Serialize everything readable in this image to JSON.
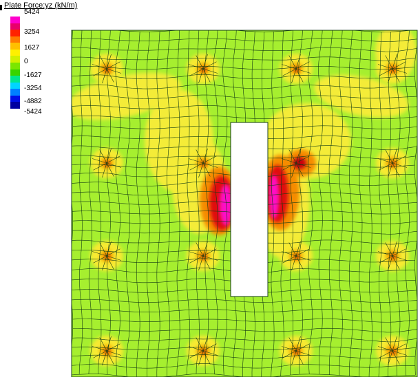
{
  "legend": {
    "title": "Plate Force:yz (kN/m)",
    "labels": [
      "5424",
      "3254",
      "1627",
      "0",
      "-1627",
      "-3254",
      "-4882",
      "-5424"
    ],
    "colors": [
      "#ff00cc",
      "#e8006a",
      "#ff2200",
      "#ff7a00",
      "#ffc000",
      "#fff000",
      "#d2f000",
      "#7ae600",
      "#38d400",
      "#00e58f",
      "#00d4ff",
      "#0080ff",
      "#0010e6",
      "#0000a0"
    ]
  },
  "colors": {
    "background_field": "#a6ef2f",
    "mesh_lines": "#143c14",
    "opening": "#ffffff"
  }
}
